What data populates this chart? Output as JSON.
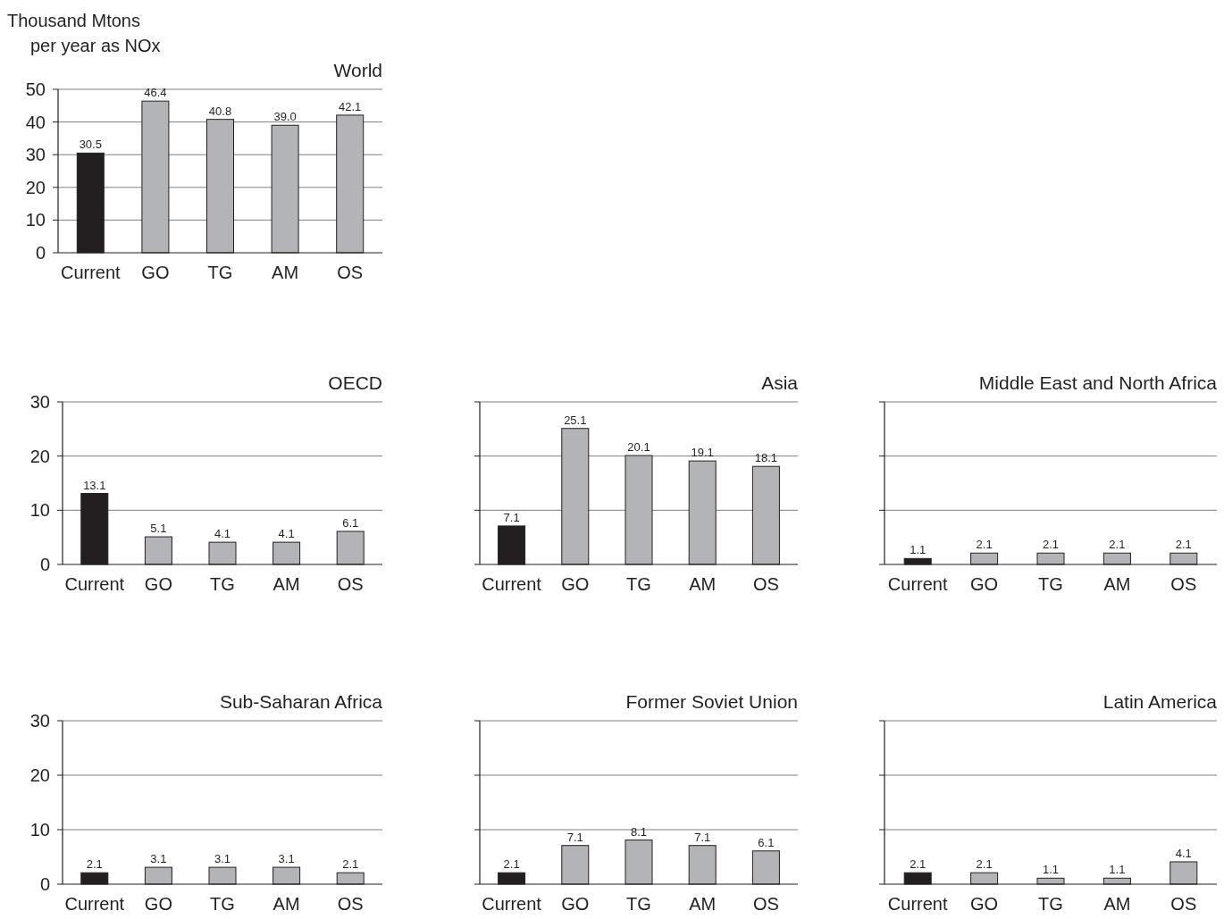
{
  "chart_data": [
    {
      "type": "bar",
      "title": "World",
      "ylabel": "Thousand Mtons\nper year as NOx",
      "categories": [
        "Current",
        "GO",
        "TG",
        "AM",
        "OS"
      ],
      "values": [
        30.5,
        46.4,
        40.8,
        39.0,
        42.1
      ],
      "value_labels": [
        "30.5",
        "46.4",
        "40.8",
        "39.0",
        "42.1"
      ],
      "colors": [
        "#231f20",
        "#b3b4b8",
        "#b3b4b8",
        "#b3b4b8",
        "#b3b4b8"
      ],
      "ylim": [
        0,
        50
      ],
      "yticks": [
        0,
        10,
        20,
        30,
        40,
        50
      ],
      "grid": "y"
    },
    {
      "type": "bar",
      "title": "OECD",
      "categories": [
        "Current",
        "GO",
        "TG",
        "AM",
        "OS"
      ],
      "values": [
        13.1,
        5.1,
        4.1,
        4.1,
        6.1
      ],
      "colors": [
        "#231f20",
        "#b3b4b8",
        "#b3b4b8",
        "#b3b4b8",
        "#b3b4b8"
      ],
      "ylim": [
        0,
        30
      ],
      "yticks": [
        0,
        10,
        20,
        30
      ],
      "grid": "y",
      "data_labels": true
    },
    {
      "type": "bar",
      "title": "Asia",
      "categories": [
        "Current",
        "GO",
        "TG",
        "AM",
        "OS"
      ],
      "values": [
        7.1,
        25.1,
        20.1,
        19.1,
        18.1
      ],
      "colors": [
        "#231f20",
        "#b3b4b8",
        "#b3b4b8",
        "#b3b4b8",
        "#b3b4b8"
      ],
      "ylim": [
        0,
        30
      ],
      "yticks": [
        0,
        10,
        20,
        30
      ],
      "grid": "y",
      "data_labels": true,
      "tick_labels": "x"
    },
    {
      "type": "bar",
      "title": "Middle East and North Africa",
      "categories": [
        "Current",
        "GO",
        "TG",
        "AM",
        "OS"
      ],
      "values": [
        1.1,
        2.1,
        2.1,
        2.1,
        2.1
      ],
      "colors": [
        "#231f20",
        "#b3b4b8",
        "#b3b4b8",
        "#b3b4b8",
        "#b3b4b8"
      ],
      "ylim": [
        0,
        30
      ],
      "yticks": [
        0,
        10,
        20,
        30
      ],
      "grid": "y",
      "data_labels": true,
      "tick_labels": "x"
    },
    {
      "type": "bar",
      "title": "Sub-Saharan Africa",
      "categories": [
        "Current",
        "GO",
        "TG",
        "AM",
        "OS"
      ],
      "values": [
        2.1,
        3.1,
        3.1,
        3.1,
        2.1
      ],
      "colors": [
        "#231f20",
        "#b3b4b8",
        "#b3b4b8",
        "#b3b4b8",
        "#b3b4b8"
      ],
      "ylim": [
        0,
        30
      ],
      "yticks": [
        0,
        10,
        20,
        30
      ],
      "grid": "y",
      "data_labels": true
    },
    {
      "type": "bar",
      "title": "Former Soviet Union",
      "categories": [
        "Current",
        "GO",
        "TG",
        "AM",
        "OS"
      ],
      "values": [
        2.1,
        7.1,
        8.1,
        7.1,
        6.1
      ],
      "colors": [
        "#231f20",
        "#b3b4b8",
        "#b3b4b8",
        "#b3b4b8",
        "#b3b4b8"
      ],
      "ylim": [
        0,
        30
      ],
      "yticks": [
        0,
        10,
        20,
        30
      ],
      "grid": "y",
      "data_labels": true,
      "tick_labels": "x"
    },
    {
      "type": "bar",
      "title": "Latin America",
      "categories": [
        "Current",
        "GO",
        "TG",
        "AM",
        "OS"
      ],
      "values": [
        2.1,
        2.1,
        1.1,
        1.1,
        4.1
      ],
      "colors": [
        "#231f20",
        "#b3b4b8",
        "#b3b4b8",
        "#b3b4b8",
        "#b3b4b8"
      ],
      "ylim": [
        0,
        30
      ],
      "yticks": [
        0,
        10,
        20,
        30
      ],
      "grid": "y",
      "data_labels": true,
      "tick_labels": "x"
    }
  ]
}
